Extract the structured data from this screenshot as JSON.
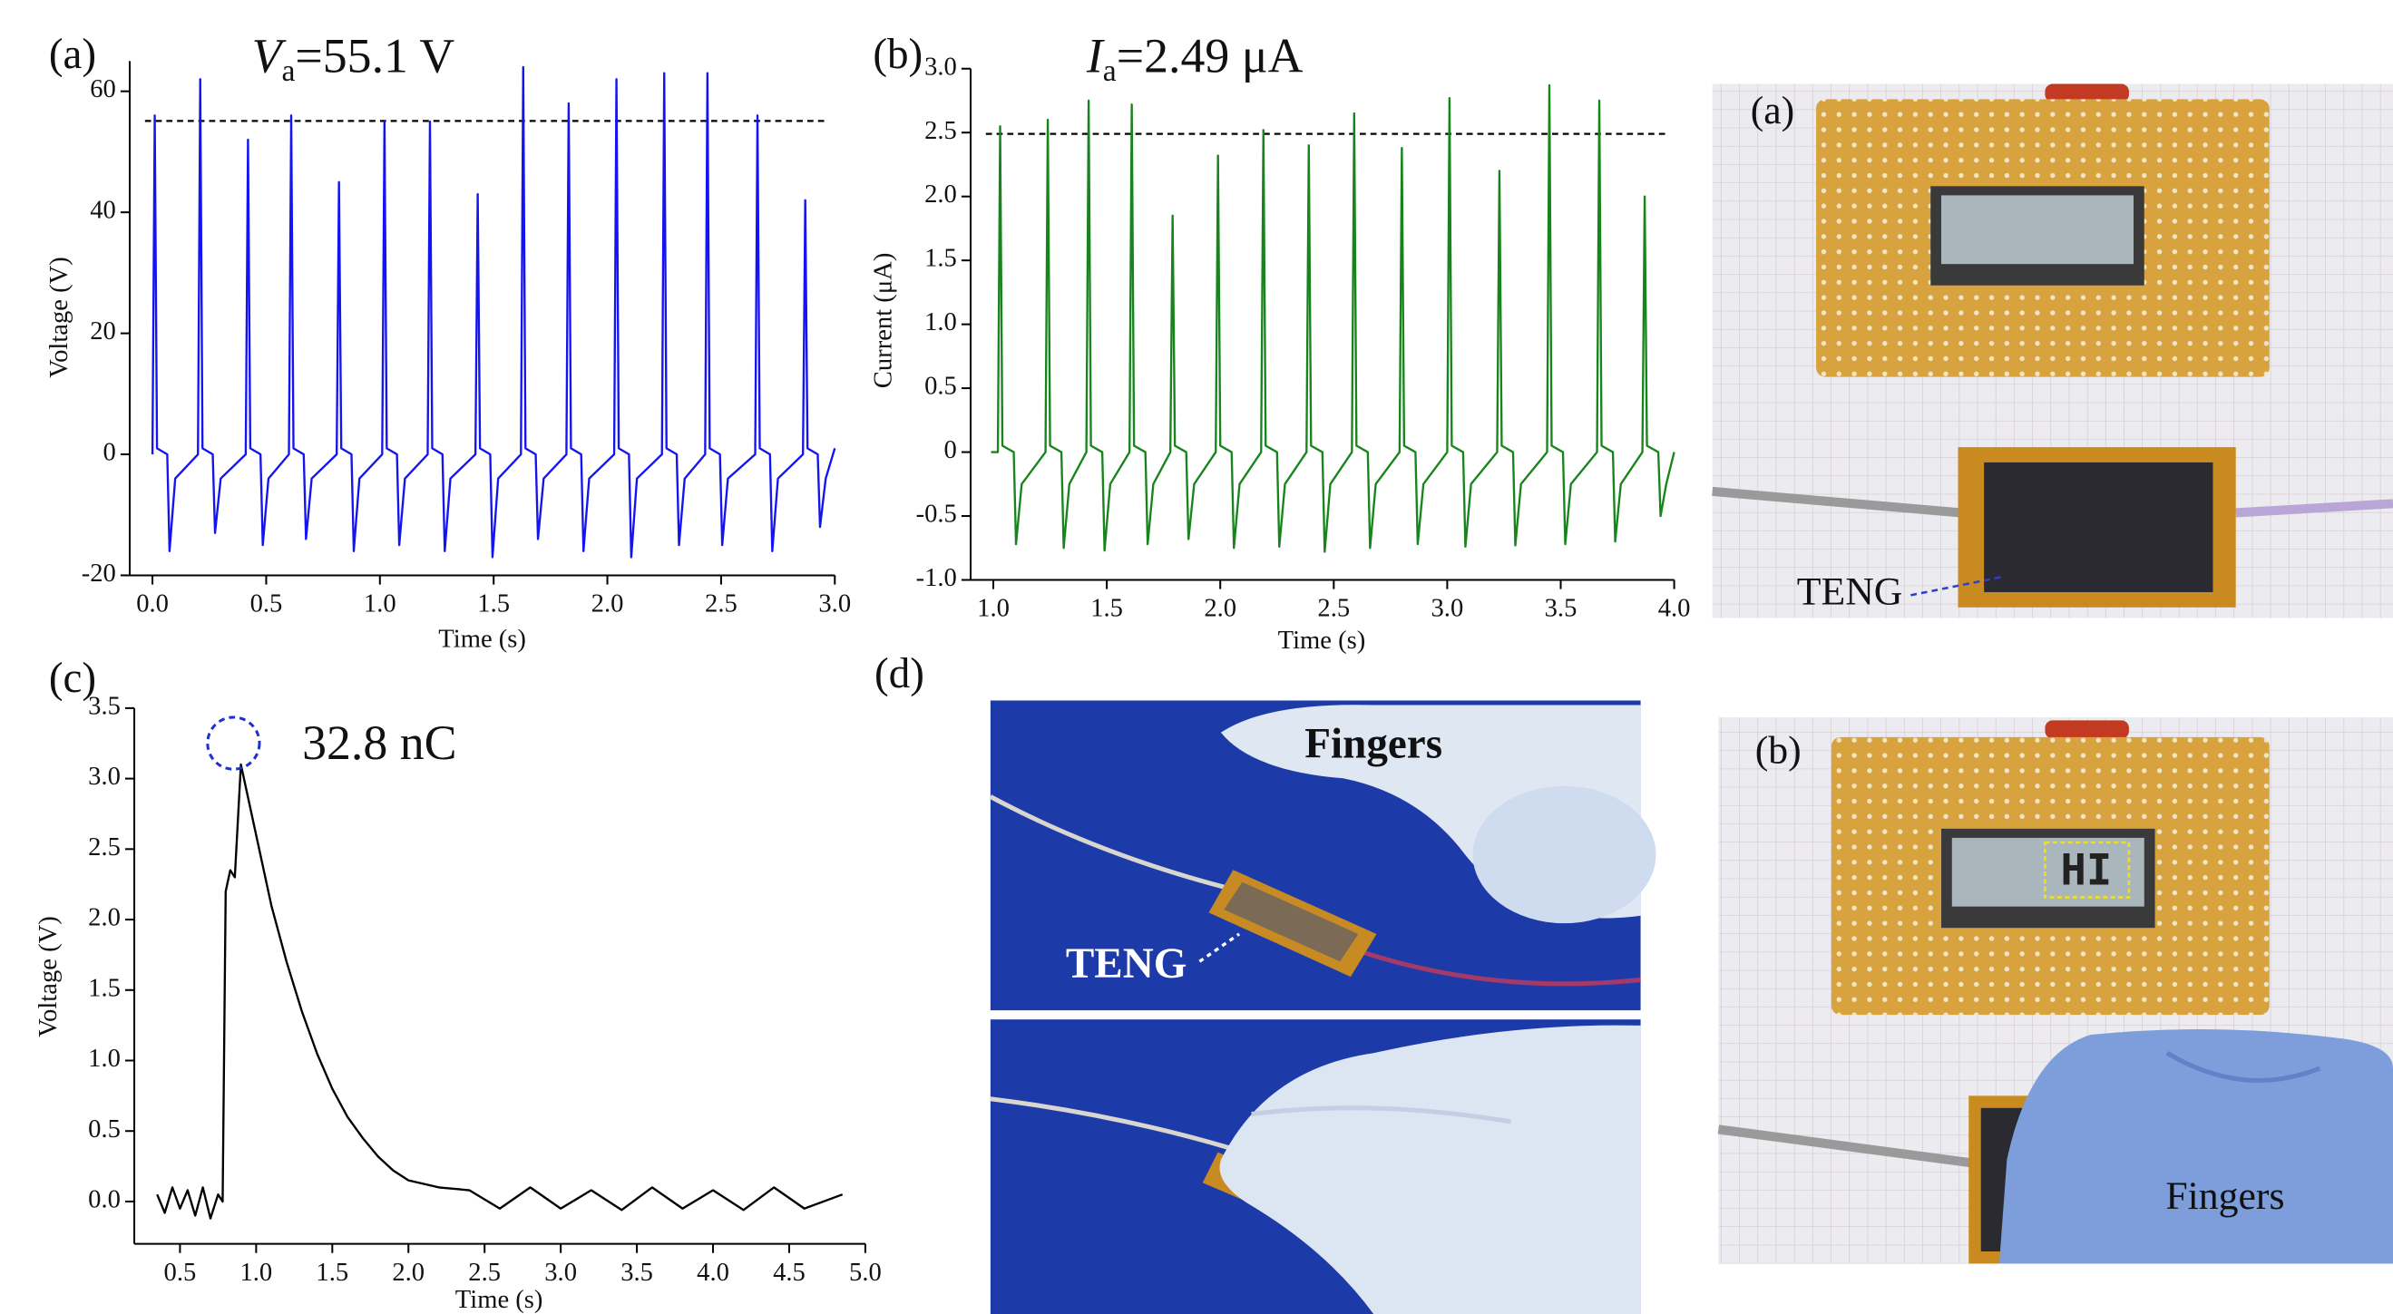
{
  "chart_data": [
    {
      "type": "line",
      "panel": "(a)",
      "x_label": "Time (s)",
      "y_label": "Voltage (V)",
      "annotation": {
        "symbol": "V",
        "subscript": "a",
        "value_text": "=55.1 V"
      },
      "reference_line": 55.1,
      "color": "#1414f0",
      "xlim": [
        -0.1,
        3.0
      ],
      "ylim": [
        -20,
        65
      ],
      "xticks": [
        {
          "value": 0,
          "label": "0.0"
        },
        0.5,
        {
          "value": 1,
          "label": "1.0"
        },
        1.5,
        {
          "value": 2,
          "label": "2.0"
        },
        2.5,
        {
          "value": 3,
          "label": "3.0"
        }
      ],
      "yticks": [
        -20,
        0,
        20,
        40,
        60
      ],
      "x": [
        0.0,
        0.01,
        0.02,
        0.065,
        0.075,
        0.1,
        0.2,
        0.21,
        0.22,
        0.265,
        0.275,
        0.3,
        0.41,
        0.42,
        0.43,
        0.475,
        0.485,
        0.51,
        0.6,
        0.61,
        0.62,
        0.665,
        0.675,
        0.7,
        0.81,
        0.82,
        0.83,
        0.875,
        0.885,
        0.91,
        1.01,
        1.02,
        1.03,
        1.075,
        1.085,
        1.11,
        1.21,
        1.22,
        1.23,
        1.275,
        1.285,
        1.31,
        1.42,
        1.43,
        1.44,
        1.485,
        1.495,
        1.52,
        1.62,
        1.63,
        1.64,
        1.685,
        1.695,
        1.72,
        1.82,
        1.83,
        1.84,
        1.885,
        1.895,
        1.92,
        2.03,
        2.04,
        2.05,
        2.095,
        2.105,
        2.13,
        2.24,
        2.25,
        2.26,
        2.305,
        2.315,
        2.34,
        2.43,
        2.44,
        2.45,
        2.495,
        2.505,
        2.53,
        2.65,
        2.66,
        2.67,
        2.715,
        2.725,
        2.75,
        2.86,
        2.87,
        2.88,
        2.925,
        2.935,
        2.96,
        3.0
      ],
      "values": [
        0,
        56,
        1,
        0,
        -16,
        -4,
        0,
        62,
        1,
        0,
        -13,
        -4,
        0,
        52,
        1,
        0,
        -15,
        -4,
        0,
        56,
        1,
        0,
        -14,
        -4,
        0,
        45,
        1,
        0,
        -16,
        -4,
        0,
        55,
        1,
        0,
        -15,
        -4,
        0,
        55,
        1,
        0,
        -16,
        -4,
        0,
        43,
        1,
        0,
        -17,
        -4,
        0,
        64,
        1,
        0,
        -14,
        -4,
        0,
        58,
        1,
        0,
        -16,
        -4,
        0,
        62,
        1,
        0,
        -17,
        -4,
        0,
        63,
        1,
        0,
        -15,
        -4,
        0,
        63,
        1,
        0,
        -15,
        -4,
        0,
        56,
        1,
        0,
        -16,
        -4,
        0,
        42,
        1,
        0,
        -12,
        -4,
        1
      ]
    },
    {
      "type": "line",
      "panel": "(b)",
      "x_label": "Time (s)",
      "y_label": "Current (μA)",
      "annotation": {
        "symbol": "I",
        "subscript": "a",
        "value_text": "=2.49 μA"
      },
      "reference_line": 2.49,
      "color": "#17851c",
      "xlim": [
        0.9,
        4.0
      ],
      "ylim": [
        -1,
        3
      ],
      "xticks": [
        {
          "value": 1,
          "label": "1.0"
        },
        1.5,
        {
          "value": 2,
          "label": "2.0"
        },
        2.5,
        {
          "value": 3,
          "label": "3.0"
        },
        3.5,
        {
          "value": 4,
          "label": "4.0"
        }
      ],
      "yticks": [
        {
          "value": -1,
          "label": "-1.0"
        },
        -0.5,
        0,
        0.5,
        {
          "value": 1,
          "label": "1.0"
        },
        1.5,
        {
          "value": 2,
          "label": "2.0"
        },
        2.5,
        {
          "value": 3,
          "label": "3.0"
        }
      ],
      "x": [
        0.99,
        1.02,
        1.03,
        1.04,
        1.09,
        1.1,
        1.125,
        1.23,
        1.24,
        1.25,
        1.3,
        1.31,
        1.335,
        1.41,
        1.42,
        1.43,
        1.48,
        1.49,
        1.515,
        1.6,
        1.61,
        1.62,
        1.67,
        1.68,
        1.705,
        1.78,
        1.79,
        1.8,
        1.85,
        1.86,
        1.885,
        1.98,
        1.99,
        2.0,
        2.05,
        2.06,
        2.085,
        2.18,
        2.19,
        2.2,
        2.25,
        2.26,
        2.285,
        2.38,
        2.39,
        2.4,
        2.45,
        2.46,
        2.485,
        2.58,
        2.59,
        2.6,
        2.65,
        2.66,
        2.685,
        2.79,
        2.8,
        2.81,
        2.86,
        2.87,
        2.895,
        3.0,
        3.01,
        3.02,
        3.07,
        3.08,
        3.105,
        3.22,
        3.23,
        3.24,
        3.29,
        3.3,
        3.325,
        3.44,
        3.45,
        3.46,
        3.51,
        3.52,
        3.545,
        3.66,
        3.67,
        3.68,
        3.73,
        3.74,
        3.765,
        3.86,
        3.87,
        3.88,
        3.93,
        3.94,
        3.965,
        4.0
      ],
      "values": [
        0,
        0,
        2.55,
        0.05,
        0,
        -0.72,
        -0.25,
        0,
        2.6,
        0.05,
        0,
        -0.75,
        -0.25,
        0,
        2.75,
        0.05,
        0,
        -0.77,
        -0.25,
        0,
        2.72,
        0.05,
        0,
        -0.72,
        -0.25,
        0,
        1.85,
        0.05,
        0,
        -0.68,
        -0.25,
        0,
        2.32,
        0.05,
        0,
        -0.75,
        -0.25,
        0,
        2.52,
        0.05,
        0,
        -0.74,
        -0.25,
        0,
        2.4,
        0.05,
        0,
        -0.78,
        -0.25,
        0,
        2.65,
        0.05,
        0,
        -0.75,
        -0.25,
        0,
        2.38,
        0.05,
        0,
        -0.72,
        -0.25,
        0,
        2.77,
        0.05,
        0,
        -0.74,
        -0.25,
        0,
        2.2,
        0.05,
        0,
        -0.73,
        -0.25,
        0,
        2.87,
        0.05,
        0,
        -0.72,
        -0.25,
        0,
        2.75,
        0.05,
        0,
        -0.7,
        -0.25,
        0,
        2.0,
        0.05,
        0,
        -0.5,
        -0.25,
        0
      ]
    },
    {
      "type": "line",
      "panel": "(c)",
      "x_label": "Time (s)",
      "y_label": "Voltage (V)",
      "annotation": "32.8 nC",
      "color": "#000000",
      "xlim": [
        0.2,
        5.0
      ],
      "ylim": [
        -0.3,
        3.5
      ],
      "xticks": [
        0.5,
        {
          "value": 1,
          "label": "1.0"
        },
        1.5,
        {
          "value": 2,
          "label": "2.0"
        },
        2.5,
        {
          "value": 3,
          "label": "3.0"
        },
        3.5,
        {
          "value": 4,
          "label": "4.0"
        },
        4.5,
        {
          "value": 5,
          "label": "5.0"
        }
      ],
      "yticks": [
        {
          "value": 0,
          "label": "0.0"
        },
        0.5,
        {
          "value": 1,
          "label": "1.0"
        },
        1.5,
        {
          "value": 2,
          "label": "2.0"
        },
        2.5,
        {
          "value": 3,
          "label": "3.0"
        },
        3.5
      ],
      "x": [
        0.35,
        0.4,
        0.45,
        0.5,
        0.55,
        0.6,
        0.65,
        0.7,
        0.75,
        0.78,
        0.8,
        0.83,
        0.86,
        0.88,
        0.9,
        0.95,
        1.0,
        1.1,
        1.2,
        1.3,
        1.4,
        1.5,
        1.6,
        1.7,
        1.8,
        1.9,
        2.0,
        2.2,
        2.4,
        2.6,
        2.8,
        3.0,
        3.2,
        3.4,
        3.6,
        3.8,
        4.0,
        4.2,
        4.4,
        4.6,
        4.85
      ],
      "values": [
        0.05,
        -0.08,
        0.1,
        -0.05,
        0.08,
        -0.1,
        0.1,
        -0.12,
        0.05,
        0.0,
        2.2,
        2.35,
        2.3,
        2.7,
        3.1,
        2.85,
        2.6,
        2.1,
        1.7,
        1.35,
        1.05,
        0.8,
        0.6,
        0.45,
        0.32,
        0.22,
        0.15,
        0.1,
        0.08,
        -0.05,
        0.1,
        -0.05,
        0.08,
        -0.06,
        0.1,
        -0.05,
        0.08,
        -0.06,
        0.1,
        -0.05,
        0.05
      ]
    }
  ],
  "panel_d": {
    "label": "(d)",
    "fingers": "Fingers",
    "teng": "TENG"
  },
  "photo_a": {
    "label": "(a)",
    "teng": "TENG"
  },
  "photo_b": {
    "label": "(b)",
    "lcd": "HI",
    "fingers": "Fingers"
  }
}
